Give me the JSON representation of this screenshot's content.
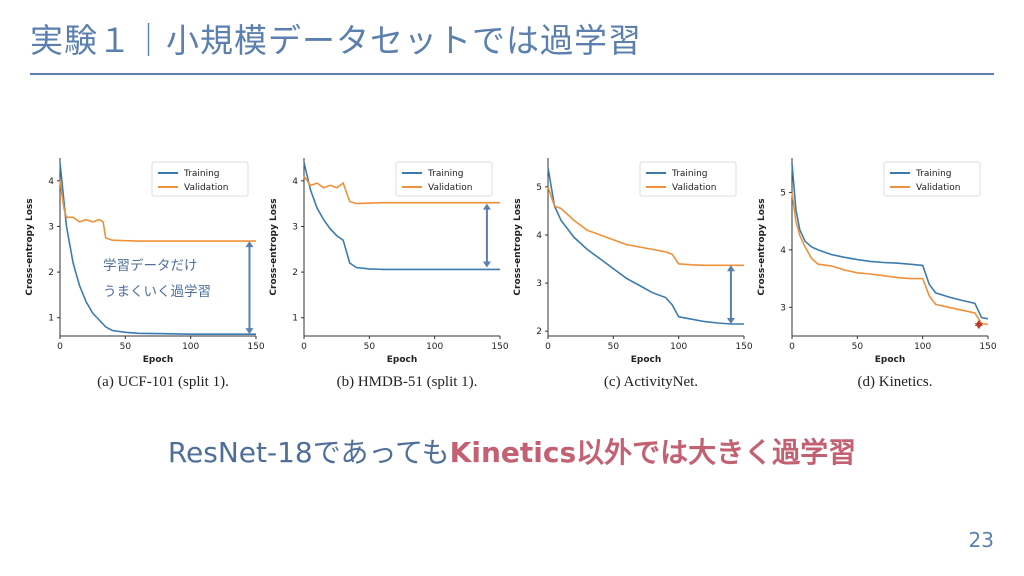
{
  "slide": {
    "title": "実験１｜小規模データセットでは過学習",
    "conclusion_plain": "ResNet-18であっても",
    "conclusion_accent": "Kinetics以外では大きく過学習",
    "page_number": "23",
    "annotation_line1": "学習データだけ",
    "annotation_line2": "うまくいく過学習"
  },
  "colors": {
    "title": "#5b7fae",
    "training": "#3b7bb0",
    "validation": "#f0913a",
    "arrow_blue": "#5a7fb0",
    "arrow_red": "#c0392b",
    "accent_text": "#c36173"
  },
  "chart_data": [
    {
      "type": "line",
      "caption": "(a) UCF-101 (split 1).",
      "xlabel": "Epoch",
      "ylabel": "Cross-entropy Loss",
      "xlim": [
        0,
        150
      ],
      "ylim": [
        0.6,
        4.5
      ],
      "xticks": [
        0,
        50,
        100,
        150
      ],
      "yticks": [
        1,
        2,
        3,
        4
      ],
      "legend": "top-right",
      "series": [
        {
          "name": "Training",
          "x": [
            0,
            5,
            10,
            15,
            20,
            25,
            30,
            35,
            40,
            50,
            60,
            80,
            100,
            120,
            140,
            150
          ],
          "y": [
            4.4,
            3.0,
            2.2,
            1.7,
            1.35,
            1.1,
            0.95,
            0.8,
            0.72,
            0.68,
            0.66,
            0.65,
            0.64,
            0.64,
            0.64,
            0.64
          ]
        },
        {
          "name": "Validation",
          "x": [
            0,
            3,
            5,
            10,
            15,
            20,
            25,
            30,
            33,
            35,
            40,
            60,
            80,
            100,
            120,
            150
          ],
          "y": [
            4.0,
            3.4,
            3.2,
            3.2,
            3.1,
            3.15,
            3.1,
            3.15,
            3.1,
            2.75,
            2.7,
            2.68,
            2.68,
            2.68,
            2.68,
            2.68
          ]
        }
      ],
      "gap_arrow": {
        "x": 145,
        "from": 2.68,
        "to": 0.64,
        "color": "blue"
      }
    },
    {
      "type": "line",
      "caption": "(b) HMDB-51 (split 1).",
      "xlabel": "Epoch",
      "ylabel": "Cross-entropy Loss",
      "xlim": [
        0,
        150
      ],
      "ylim": [
        0.6,
        4.5
      ],
      "xticks": [
        0,
        50,
        100,
        150
      ],
      "yticks": [
        1,
        2,
        3,
        4
      ],
      "legend": "top-right",
      "series": [
        {
          "name": "Training",
          "x": [
            0,
            5,
            10,
            15,
            20,
            25,
            30,
            35,
            40,
            50,
            60,
            80,
            100,
            120,
            150
          ],
          "y": [
            4.4,
            3.8,
            3.4,
            3.15,
            2.95,
            2.8,
            2.7,
            2.2,
            2.1,
            2.07,
            2.06,
            2.06,
            2.06,
            2.06,
            2.06
          ]
        },
        {
          "name": "Validation",
          "x": [
            0,
            5,
            10,
            15,
            20,
            25,
            30,
            35,
            40,
            60,
            80,
            100,
            120,
            150
          ],
          "y": [
            4.1,
            3.9,
            3.95,
            3.85,
            3.9,
            3.85,
            3.95,
            3.55,
            3.5,
            3.52,
            3.52,
            3.52,
            3.52,
            3.52
          ]
        }
      ],
      "gap_arrow": {
        "x": 140,
        "from": 3.5,
        "to": 2.1,
        "color": "blue"
      }
    },
    {
      "type": "line",
      "caption": "(c) ActivityNet.",
      "xlabel": "Epoch",
      "ylabel": "Cross-entropy Loss",
      "xlim": [
        0,
        150
      ],
      "ylim": [
        1.9,
        5.6
      ],
      "xticks": [
        0,
        50,
        100,
        150
      ],
      "yticks": [
        2,
        3,
        4,
        5
      ],
      "legend": "top-right",
      "series": [
        {
          "name": "Training",
          "x": [
            0,
            5,
            10,
            20,
            30,
            40,
            50,
            60,
            70,
            80,
            90,
            95,
            100,
            110,
            120,
            130,
            140,
            150
          ],
          "y": [
            5.4,
            4.6,
            4.3,
            3.95,
            3.7,
            3.5,
            3.3,
            3.1,
            2.95,
            2.8,
            2.7,
            2.55,
            2.3,
            2.25,
            2.2,
            2.17,
            2.15,
            2.15
          ]
        },
        {
          "name": "Validation",
          "x": [
            0,
            5,
            10,
            20,
            30,
            40,
            50,
            60,
            70,
            80,
            90,
            95,
            100,
            110,
            120,
            130,
            140,
            150
          ],
          "y": [
            5.0,
            4.6,
            4.55,
            4.3,
            4.1,
            4.0,
            3.9,
            3.8,
            3.75,
            3.7,
            3.65,
            3.6,
            3.4,
            3.38,
            3.37,
            3.37,
            3.37,
            3.37
          ]
        }
      ],
      "gap_arrow": {
        "x": 140,
        "from": 3.37,
        "to": 2.15,
        "color": "blue"
      }
    },
    {
      "type": "line",
      "caption": "(d) Kinetics.",
      "xlabel": "Epoch",
      "ylabel": "Cross-entropy Loss",
      "xlim": [
        0,
        150
      ],
      "ylim": [
        2.5,
        5.6
      ],
      "xticks": [
        0,
        50,
        100,
        150
      ],
      "yticks": [
        3,
        4,
        5
      ],
      "legend": "top-right",
      "series": [
        {
          "name": "Training",
          "x": [
            0,
            3,
            6,
            10,
            15,
            20,
            30,
            40,
            50,
            60,
            70,
            80,
            90,
            100,
            105,
            110,
            120,
            130,
            140,
            145,
            150
          ],
          "y": [
            5.5,
            4.7,
            4.35,
            4.15,
            4.05,
            4.0,
            3.92,
            3.87,
            3.83,
            3.8,
            3.78,
            3.77,
            3.75,
            3.73,
            3.4,
            3.25,
            3.18,
            3.12,
            3.07,
            2.82,
            2.8
          ]
        },
        {
          "name": "Validation",
          "x": [
            0,
            3,
            6,
            10,
            15,
            20,
            30,
            40,
            50,
            60,
            70,
            80,
            90,
            100,
            105,
            110,
            120,
            130,
            140,
            145,
            150
          ],
          "y": [
            5.0,
            4.5,
            4.25,
            4.05,
            3.85,
            3.75,
            3.72,
            3.65,
            3.6,
            3.58,
            3.55,
            3.52,
            3.5,
            3.5,
            3.2,
            3.05,
            3.0,
            2.95,
            2.9,
            2.72,
            2.7
          ]
        }
      ],
      "gap_arrow": {
        "x": 143,
        "from": 2.78,
        "to": 2.62,
        "color": "red"
      }
    }
  ]
}
